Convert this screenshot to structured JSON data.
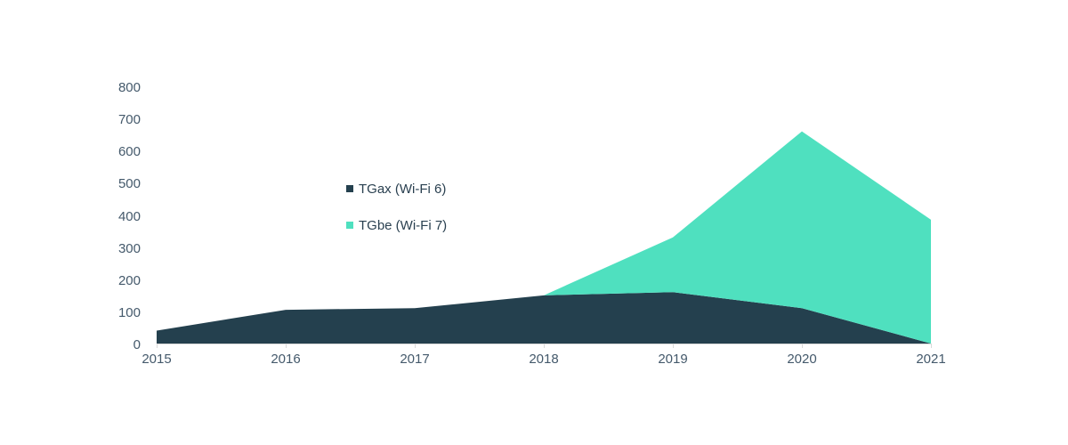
{
  "chart_data": {
    "type": "area",
    "stacked": true,
    "title": "",
    "xlabel": "",
    "ylabel": "",
    "categories": [
      "2015",
      "2016",
      "2017",
      "2018",
      "2019",
      "2020",
      "2021"
    ],
    "series": [
      {
        "name": "TGax (Wi-Fi 6)",
        "color": "#24404e",
        "values": [
          40,
          105,
          110,
          150,
          160,
          110,
          0
        ]
      },
      {
        "name": "TGbe (Wi-Fi 7)",
        "color": "#4fe0bf",
        "values": [
          0,
          0,
          0,
          0,
          170,
          550,
          385
        ]
      }
    ],
    "stacked_totals": [
      40,
      105,
      110,
      150,
      330,
      660,
      385
    ],
    "y_ticks": [
      0,
      100,
      200,
      300,
      400,
      500,
      600,
      700,
      800
    ],
    "ylim": [
      0,
      800
    ],
    "grid": false,
    "legend_position": "inside-center-left"
  },
  "legend": {
    "items": [
      {
        "label": "TGax (Wi-Fi 6)",
        "color": "#24404e"
      },
      {
        "label": "TGbe (Wi-Fi 7)",
        "color": "#4fe0bf"
      }
    ]
  },
  "colors": {
    "background": "#ffffff",
    "axis_text": "#44596b",
    "axis_line": "#d9d9d9",
    "legend_text": "#2a4050"
  }
}
